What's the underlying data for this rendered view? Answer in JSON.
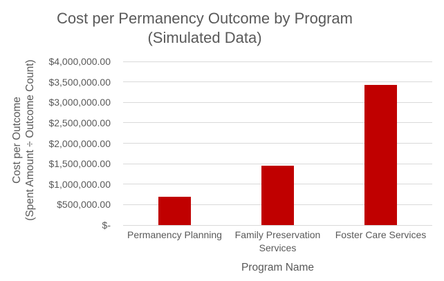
{
  "title": {
    "line1": "Cost per Permanency Outcome by Program",
    "line2": "(Simulated Data)"
  },
  "chart_data": {
    "type": "bar",
    "title": "Cost per Permanency Outcome by Program (Simulated Data)",
    "title_line1": "Cost per Permanency Outcome by Program",
    "title_line2": "(Simulated Data)",
    "categories": [
      "Permanency Planning",
      "Family Preservation Services",
      "Foster Care Services"
    ],
    "values": [
      700000,
      1450000,
      3430000
    ],
    "series": [
      {
        "name": "Cost per Outcome",
        "values": [
          700000,
          1450000,
          3430000
        ]
      }
    ],
    "xlabel": "Program Name",
    "ylabel": "Cost per Outcome (Spent Amount ÷ Outcome Count)",
    "ylabel_line1": "Cost per Outcome",
    "ylabel_line2": "(Spent Amount ÷ Outcome Count)",
    "ylim": [
      0,
      4000000
    ],
    "ytick_interval": 500000,
    "ytick_labels": [
      "$-",
      "$500,000.00",
      "$1,000,000.00",
      "$1,500,000.00",
      "$2,000,000.00",
      "$2,500,000.00",
      "$3,000,000.00",
      "$3,500,000.00",
      "$4,000,000.00"
    ],
    "grid": true,
    "legend": false,
    "bar_color": "#C00000",
    "gridline_color": "#D9D9D9",
    "text_color": "#595959",
    "background_color": "#FFFFFF"
  }
}
